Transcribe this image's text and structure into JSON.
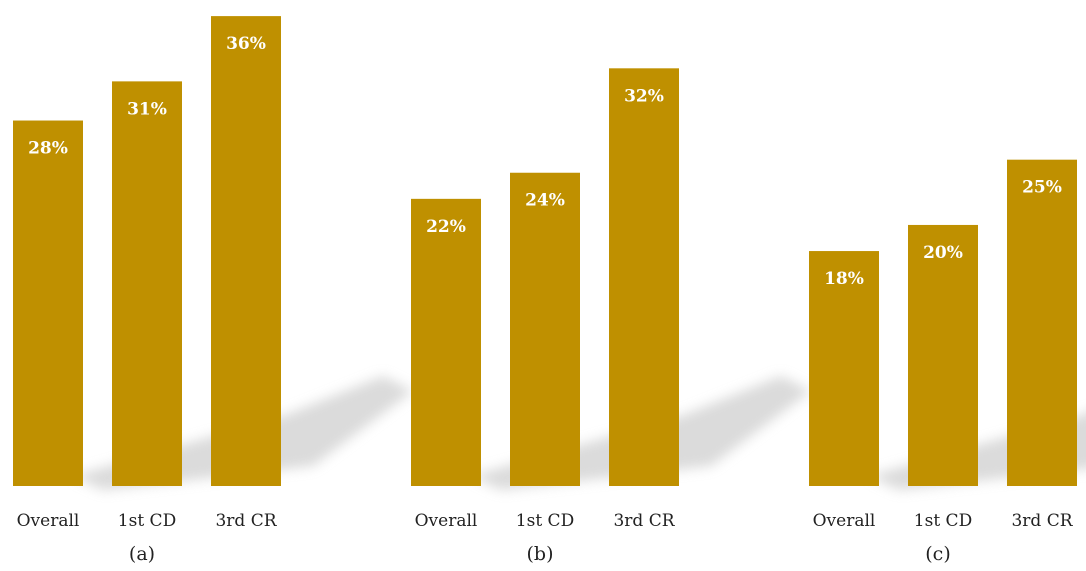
{
  "colors": {
    "bar": "#bf9000",
    "shadow": "#cfcfcf",
    "text": "#222222"
  },
  "chart_data": [
    {
      "type": "bar",
      "panel_label": "(a)",
      "categories": [
        "Overall",
        "1st CD",
        "3rd CR"
      ],
      "values": [
        28,
        31,
        36
      ],
      "value_labels": [
        "28%",
        "31%",
        "36%"
      ],
      "ylim": [
        0,
        38
      ]
    },
    {
      "type": "bar",
      "panel_label": "(b)",
      "categories": [
        "Overall",
        "1st CD",
        "3rd CR"
      ],
      "values": [
        22,
        24,
        32
      ],
      "value_labels": [
        "22%",
        "24%",
        "32%"
      ],
      "ylim": [
        0,
        38
      ]
    },
    {
      "type": "bar",
      "panel_label": "(c)",
      "categories": [
        "Overall",
        "1st CD",
        "3rd CR"
      ],
      "values": [
        18,
        20,
        25
      ],
      "value_labels": [
        "18%",
        "20%",
        "25%"
      ],
      "ylim": [
        0,
        38
      ]
    }
  ]
}
